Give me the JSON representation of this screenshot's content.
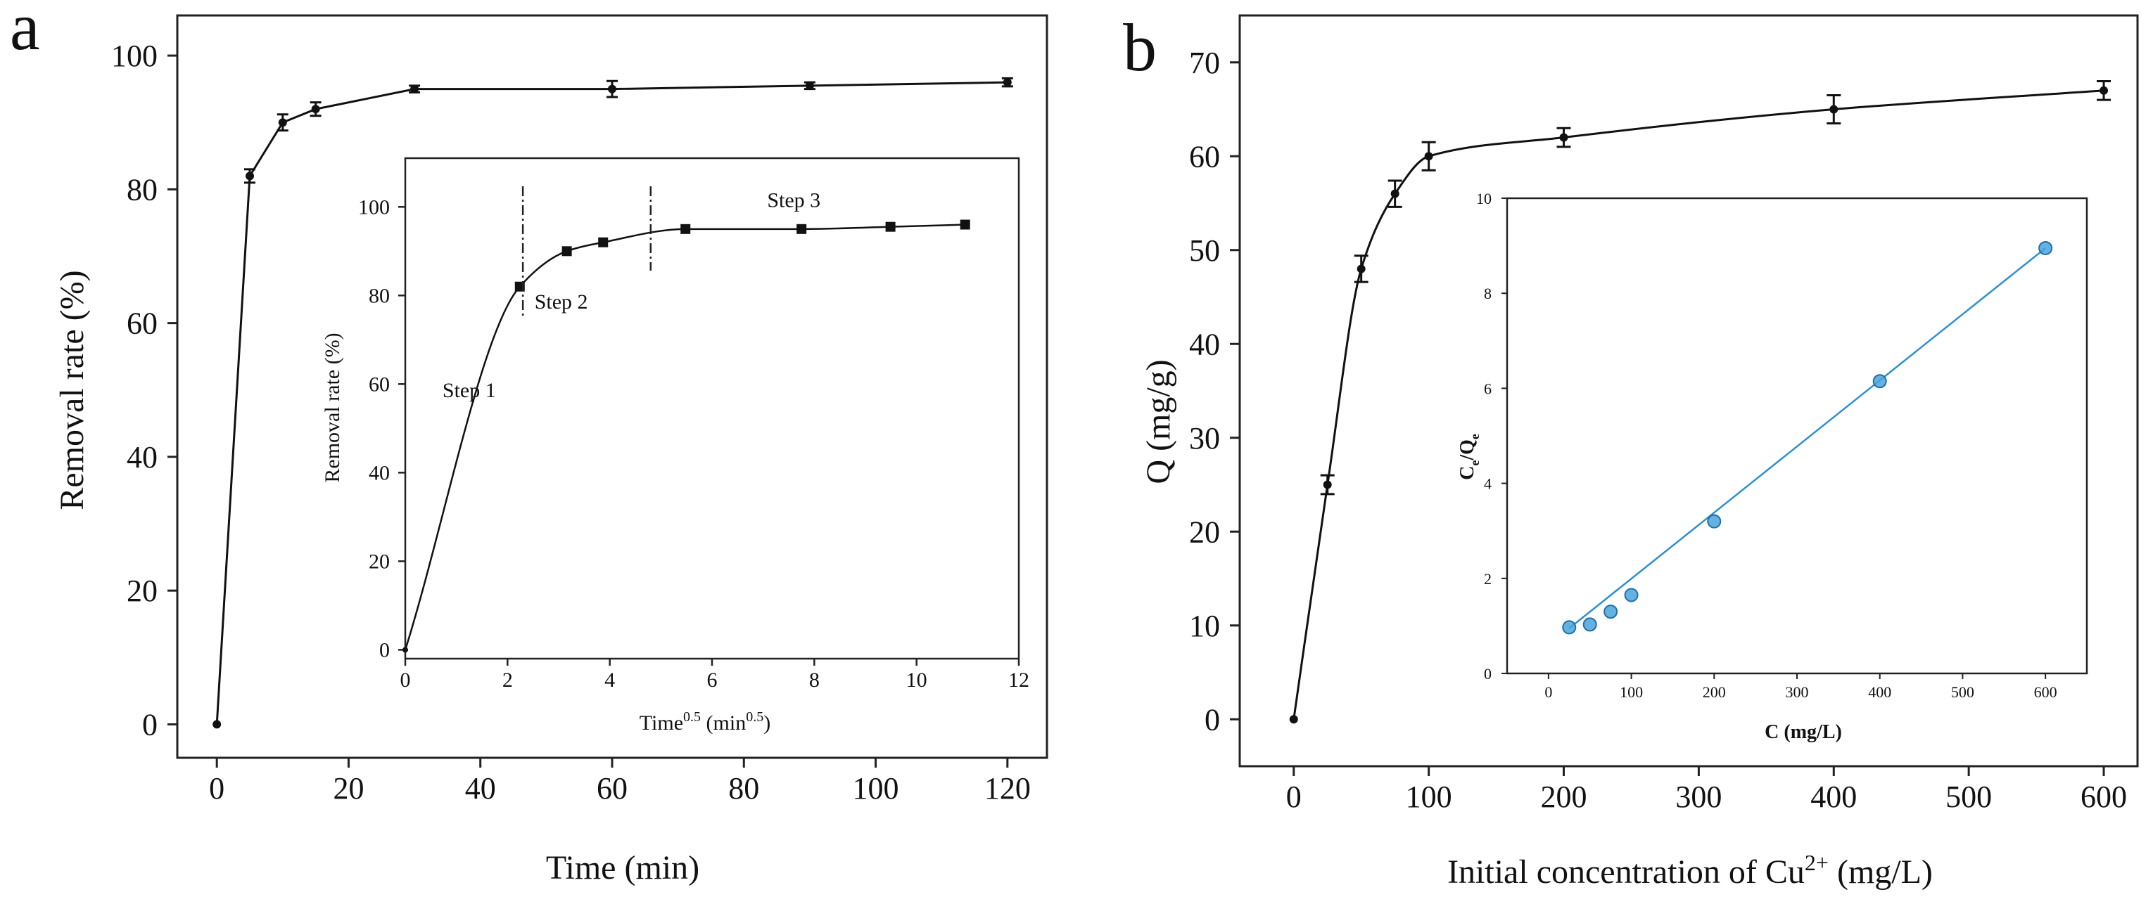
{
  "chart_data": [
    {
      "id": "a",
      "type": "line",
      "panel_label": "a",
      "xlabel": "Time (min)",
      "ylabel": "Removal rate (%)",
      "xlim": [
        -6,
        126
      ],
      "ylim": [
        -5,
        106
      ],
      "xticks": [
        0,
        20,
        40,
        60,
        80,
        100,
        120
      ],
      "yticks": [
        0,
        20,
        40,
        60,
        80,
        100
      ],
      "series": [
        {
          "name": "Removal rate",
          "x": [
            0,
            5,
            10,
            15,
            30,
            60,
            90,
            120
          ],
          "y": [
            0,
            82,
            90,
            92,
            95,
            95,
            95.5,
            96
          ],
          "err": [
            0,
            1,
            1.2,
            1,
            0.5,
            1.2,
            0.5,
            0.6
          ]
        }
      ]
    },
    {
      "id": "a_inset",
      "type": "line",
      "xlabel_base": "Time",
      "xlabel_sup": "0.5",
      "xlabel_unit_open": " (min",
      "xlabel_unit_sup": "0.5",
      "xlabel_unit_close": ")",
      "ylabel": "Removal rate (%)",
      "xlim": [
        0,
        12
      ],
      "ylim": [
        -2,
        111
      ],
      "xticks": [
        0,
        2,
        4,
        6,
        8,
        10,
        12
      ],
      "yticks": [
        0,
        20,
        40,
        60,
        80,
        100
      ],
      "series": [
        {
          "name": "Removal rate",
          "x": [
            0,
            2.24,
            3.16,
            3.87,
            5.48,
            7.75,
            9.49,
            10.95
          ],
          "y": [
            0,
            82,
            90,
            92,
            95,
            95,
            95.5,
            96
          ]
        }
      ],
      "dividers": [
        2.3,
        4.8
      ],
      "annotations": [
        {
          "text": "Step 1",
          "x": 1.25,
          "y": 57
        },
        {
          "text": "Step 2",
          "x": 3.05,
          "y": 77
        },
        {
          "text": "Step 3",
          "x": 7.6,
          "y": 100
        }
      ]
    },
    {
      "id": "b",
      "type": "line",
      "panel_label": "b",
      "xlabel_base": "Initial concentration of Cu",
      "xlabel_sup": "2+",
      "xlabel_unit": " (mg/L)",
      "ylabel": "Q (mg/g)",
      "xlim": [
        -40,
        625
      ],
      "ylim": [
        -5,
        75
      ],
      "xticks": [
        0,
        100,
        200,
        300,
        400,
        500,
        600
      ],
      "yticks": [
        0,
        10,
        20,
        30,
        40,
        50,
        60,
        70
      ],
      "series": [
        {
          "name": "Q",
          "x": [
            0,
            25,
            50,
            75,
            100,
            200,
            400,
            600
          ],
          "y": [
            0,
            25,
            48,
            56,
            60,
            62,
            65,
            67
          ],
          "err": [
            0,
            1,
            1.4,
            1.4,
            1.5,
            1,
            1.5,
            1
          ]
        }
      ]
    },
    {
      "id": "b_inset",
      "type": "scatter",
      "xlabel": "C (mg/L)",
      "ylabel_main": "C",
      "ylabel_sub1": "e",
      "ylabel_mid": "/Q",
      "ylabel_sub2": "e",
      "xlim": [
        -50,
        650
      ],
      "ylim": [
        0,
        10
      ],
      "xticks": [
        0,
        100,
        200,
        300,
        400,
        500,
        600
      ],
      "yticks": [
        0,
        2,
        4,
        6,
        8,
        10
      ],
      "color": "#4aa3d9",
      "line_color": "#2e8fd0",
      "series": [
        {
          "name": "Ce/Qe",
          "x": [
            25,
            50,
            75,
            100,
            200,
            400,
            600
          ],
          "y": [
            0.97,
            1.03,
            1.3,
            1.65,
            3.2,
            6.15,
            8.95
          ]
        }
      ],
      "fit_line": {
        "x": [
          25,
          600
        ],
        "y": [
          0.95,
          8.95
        ]
      }
    }
  ]
}
